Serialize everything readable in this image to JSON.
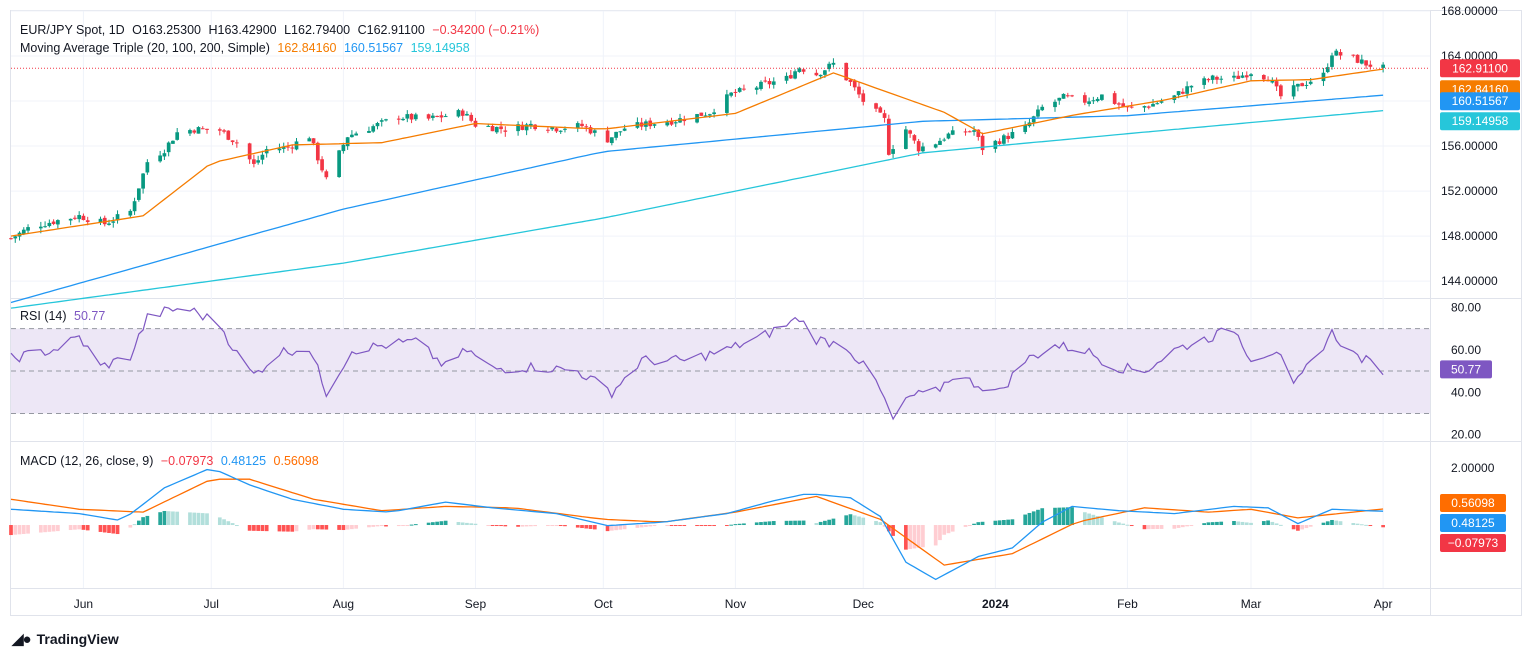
{
  "colors": {
    "up": "#089981",
    "down": "#f23645",
    "ma20": "#f57c00",
    "ma100": "#2196f3",
    "ma200": "#26c6da",
    "rsi": "#7e57c2",
    "rsi_band": "#ede7f6",
    "macd": "#2196f3",
    "signal": "#ff6d00",
    "hist_up_strong": "#26a69a",
    "hist_up_weak": "#b2dfdb",
    "hist_dn_strong": "#ff5252",
    "hist_dn_weak": "#ffcdd2",
    "grid": "#f0f3fa",
    "border": "#e0e3eb"
  },
  "legend": {
    "symbol": "EUR/JPY Spot, 1D",
    "o_label": "O",
    "o": "163.25300",
    "h_label": "H",
    "h": "163.42900",
    "l_label": "L",
    "l": "162.79400",
    "c_label": "C",
    "c": "162.91100",
    "change": "−0.34200 (−0.21%)",
    "ma_name": "Moving Average Triple (20, 100, 200, Simple)",
    "ma20": "162.84160",
    "ma100": "160.51567",
    "ma200": "159.14958",
    "rsi_name": "RSI (14)",
    "rsi": "50.77",
    "macd_name": "MACD (12, 26, close, 9)",
    "macd_hist": "−0.07973",
    "macd": "0.48125",
    "macd_signal": "0.56098"
  },
  "price_axis": [
    "168.00000",
    "164.00000",
    "160.00000",
    "156.00000",
    "152.00000",
    "148.00000",
    "144.00000"
  ],
  "price_badges": [
    "162.91100",
    "162.84160",
    "160.51567",
    "159.14958"
  ],
  "rsi_axis": [
    "80.00",
    "60.00",
    "40.00",
    "20.00"
  ],
  "rsi_badge": "50.77",
  "macd_axis": [
    "2.00000"
  ],
  "macd_badges": [
    "0.56098",
    "0.48125",
    "−0.07973"
  ],
  "time_axis": [
    "Jun",
    "Jul",
    "Aug",
    "Sep",
    "Oct",
    "Nov",
    "Dec",
    "2024",
    "Feb",
    "Mar",
    "Apr"
  ],
  "brand": "TradingView",
  "chart_data": [
    {
      "type": "candlestick",
      "title": "EUR/JPY Spot, 1D",
      "ylim": [
        142.5,
        168.0
      ],
      "x_range": [
        "2023-05-15",
        "2024-04-12"
      ],
      "price_anchors": [
        [
          "2023-05-15",
          147.8
        ],
        [
          "2023-05-20",
          148.9
        ],
        [
          "2023-05-31",
          149.8
        ],
        [
          "2023-06-06",
          149.1
        ],
        [
          "2023-06-12",
          150.2
        ],
        [
          "2023-06-16",
          154.6
        ],
        [
          "2023-06-20",
          155.7
        ],
        [
          "2023-06-23",
          157.2
        ],
        [
          "2023-06-27",
          157.5
        ],
        [
          "2023-07-03",
          157.4
        ],
        [
          "2023-07-07",
          156.3
        ],
        [
          "2023-07-11",
          154.3
        ],
        [
          "2023-07-14",
          155.7
        ],
        [
          "2023-07-19",
          155.9
        ],
        [
          "2023-07-24",
          156.9
        ],
        [
          "2023-07-28",
          153.0
        ],
        [
          "2023-08-02",
          156.9
        ],
        [
          "2023-08-07",
          157.6
        ],
        [
          "2023-08-14",
          158.6
        ],
        [
          "2023-08-21",
          158.4
        ],
        [
          "2023-08-25",
          158.7
        ],
        [
          "2023-08-29",
          159.0
        ],
        [
          "2023-09-01",
          157.9
        ],
        [
          "2023-09-08",
          157.5
        ],
        [
          "2023-09-14",
          157.9
        ],
        [
          "2023-09-20",
          157.6
        ],
        [
          "2023-09-26",
          157.8
        ],
        [
          "2023-10-02",
          156.6
        ],
        [
          "2023-10-06",
          157.6
        ],
        [
          "2023-10-12",
          158.0
        ],
        [
          "2023-10-18",
          158.3
        ],
        [
          "2023-10-26",
          159.0
        ],
        [
          "2023-10-31",
          160.6
        ],
        [
          "2023-11-08",
          161.5
        ],
        [
          "2023-11-13",
          162.0
        ],
        [
          "2023-11-16",
          163.0
        ],
        [
          "2023-11-20",
          162.4
        ],
        [
          "2023-11-24",
          163.3
        ],
        [
          "2023-11-28",
          161.6
        ],
        [
          "2023-12-01",
          160.0
        ],
        [
          "2023-12-06",
          158.3
        ],
        [
          "2023-12-07",
          155.5
        ],
        [
          "2023-12-11",
          157.5
        ],
        [
          "2023-12-14",
          155.8
        ],
        [
          "2023-12-18",
          156.3
        ],
        [
          "2023-12-21",
          157.0
        ],
        [
          "2023-12-27",
          157.4
        ],
        [
          "2023-12-29",
          155.8
        ],
        [
          "2024-01-03",
          156.7
        ],
        [
          "2024-01-08",
          157.6
        ],
        [
          "2024-01-12",
          159.4
        ],
        [
          "2024-01-17",
          160.3
        ],
        [
          "2024-01-22",
          160.0
        ],
        [
          "2024-01-26",
          160.5
        ],
        [
          "2024-02-01",
          159.3
        ],
        [
          "2024-02-06",
          159.6
        ],
        [
          "2024-02-12",
          160.4
        ],
        [
          "2024-02-16",
          161.4
        ],
        [
          "2024-02-21",
          162.0
        ],
        [
          "2024-02-26",
          162.0
        ],
        [
          "2024-03-01",
          162.6
        ],
        [
          "2024-03-05",
          162.1
        ],
        [
          "2024-03-08",
          160.4
        ],
        [
          "2024-03-13",
          161.5
        ],
        [
          "2024-03-18",
          162.3
        ],
        [
          "2024-03-20",
          164.3
        ],
        [
          "2024-03-25",
          163.8
        ],
        [
          "2024-03-28",
          163.3
        ],
        [
          "2024-04-01",
          162.91
        ]
      ],
      "ma20_anchors": [
        [
          "2023-05-15",
          148.0
        ],
        [
          "2023-06-15",
          149.8
        ],
        [
          "2023-07-01",
          154.5
        ],
        [
          "2023-07-20",
          156.1
        ],
        [
          "2023-08-10",
          156.3
        ],
        [
          "2023-09-01",
          158.0
        ],
        [
          "2023-10-01",
          157.5
        ],
        [
          "2023-11-01",
          158.9
        ],
        [
          "2023-11-24",
          162.5
        ],
        [
          "2023-12-20",
          159.0
        ],
        [
          "2023-12-29",
          157.1
        ],
        [
          "2024-01-20",
          158.8
        ],
        [
          "2024-02-10",
          160.1
        ],
        [
          "2024-03-01",
          161.8
        ],
        [
          "2024-03-15",
          161.9
        ],
        [
          "2024-04-01",
          162.84
        ]
      ],
      "ma100_anchors": [
        [
          "2023-05-15",
          142.1
        ],
        [
          "2023-08-01",
          150.4
        ],
        [
          "2023-10-01",
          155.5
        ],
        [
          "2023-12-15",
          158.2
        ],
        [
          "2024-02-01",
          158.7
        ],
        [
          "2024-04-01",
          160.52
        ]
      ],
      "ma200_anchors": [
        [
          "2023-05-15",
          141.6
        ],
        [
          "2023-08-01",
          145.6
        ],
        [
          "2023-10-01",
          149.6
        ],
        [
          "2023-12-15",
          155.4
        ],
        [
          "2024-02-01",
          157.1
        ],
        [
          "2024-04-01",
          159.15
        ]
      ],
      "last_close": 162.911,
      "ma_values": {
        "ma20": 162.8416,
        "ma100": 160.51567,
        "ma200": 159.14958
      }
    },
    {
      "type": "line",
      "title": "RSI (14)",
      "ylim": [
        17,
        84
      ],
      "bands": [
        30,
        50,
        70
      ],
      "anchors": [
        [
          "2023-05-15",
          56
        ],
        [
          "2023-05-25",
          60
        ],
        [
          "2023-05-31",
          66
        ],
        [
          "2023-06-05",
          52
        ],
        [
          "2023-06-12",
          57
        ],
        [
          "2023-06-16",
          75
        ],
        [
          "2023-06-20",
          78
        ],
        [
          "2023-06-25",
          80
        ],
        [
          "2023-07-03",
          72
        ],
        [
          "2023-07-07",
          58
        ],
        [
          "2023-07-11",
          48
        ],
        [
          "2023-07-17",
          59
        ],
        [
          "2023-07-24",
          61
        ],
        [
          "2023-07-28",
          40
        ],
        [
          "2023-08-03",
          60
        ],
        [
          "2023-08-10",
          62
        ],
        [
          "2023-08-18",
          64
        ],
        [
          "2023-08-25",
          52
        ],
        [
          "2023-08-30",
          60
        ],
        [
          "2023-09-05",
          51
        ],
        [
          "2023-09-15",
          52
        ],
        [
          "2023-09-25",
          50
        ],
        [
          "2023-10-03",
          40
        ],
        [
          "2023-10-10",
          55
        ],
        [
          "2023-10-20",
          55
        ],
        [
          "2023-10-30",
          60
        ],
        [
          "2023-11-08",
          67
        ],
        [
          "2023-11-16",
          75
        ],
        [
          "2023-11-20",
          65
        ],
        [
          "2023-11-27",
          62
        ],
        [
          "2023-12-04",
          45
        ],
        [
          "2023-12-08",
          27
        ],
        [
          "2023-12-12",
          38
        ],
        [
          "2023-12-18",
          40
        ],
        [
          "2023-12-22",
          48
        ],
        [
          "2024-01-02",
          40
        ],
        [
          "2024-01-08",
          55
        ],
        [
          "2024-01-15",
          62
        ],
        [
          "2024-01-22",
          60
        ],
        [
          "2024-01-29",
          52
        ],
        [
          "2024-02-05",
          50
        ],
        [
          "2024-02-12",
          60
        ],
        [
          "2024-02-19",
          65
        ],
        [
          "2024-02-26",
          70
        ],
        [
          "2024-03-01",
          56
        ],
        [
          "2024-03-07",
          60
        ],
        [
          "2024-03-11",
          42
        ],
        [
          "2024-03-15",
          54
        ],
        [
          "2024-03-20",
          68
        ],
        [
          "2024-03-25",
          58
        ],
        [
          "2024-04-01",
          50.77
        ]
      ],
      "last": 50.77
    },
    {
      "type": "macd",
      "title": "MACD (12, 26, close, 9)",
      "ylim": [
        -2.2,
        2.9
      ],
      "macd_anchors": [
        [
          "2023-05-15",
          0.55
        ],
        [
          "2023-05-31",
          0.4
        ],
        [
          "2023-06-10",
          0.15
        ],
        [
          "2023-06-20",
          1.3
        ],
        [
          "2023-07-01",
          2.0
        ],
        [
          "2023-07-10",
          1.4
        ],
        [
          "2023-07-20",
          0.9
        ],
        [
          "2023-08-01",
          0.55
        ],
        [
          "2023-08-12",
          0.45
        ],
        [
          "2023-08-25",
          0.8
        ],
        [
          "2023-09-05",
          0.6
        ],
        [
          "2023-09-20",
          0.4
        ],
        [
          "2023-10-02",
          -0.02
        ],
        [
          "2023-10-15",
          0.1
        ],
        [
          "2023-10-30",
          0.4
        ],
        [
          "2023-11-10",
          0.85
        ],
        [
          "2023-11-18",
          1.1
        ],
        [
          "2023-11-28",
          0.95
        ],
        [
          "2023-12-05",
          0.3
        ],
        [
          "2023-12-11",
          -1.3
        ],
        [
          "2023-12-18",
          -1.9
        ],
        [
          "2023-12-28",
          -1.1
        ],
        [
          "2024-01-05",
          -0.8
        ],
        [
          "2024-01-12",
          0.1
        ],
        [
          "2024-01-19",
          0.65
        ],
        [
          "2024-01-30",
          0.5
        ],
        [
          "2024-02-12",
          0.4
        ],
        [
          "2024-02-26",
          0.65
        ],
        [
          "2024-03-05",
          0.6
        ],
        [
          "2024-03-12",
          0.05
        ],
        [
          "2024-03-20",
          0.55
        ],
        [
          "2024-04-01",
          0.48125
        ]
      ],
      "signal_anchors": [
        [
          "2023-05-15",
          0.9
        ],
        [
          "2023-05-31",
          0.55
        ],
        [
          "2023-06-15",
          0.45
        ],
        [
          "2023-07-01",
          1.6
        ],
        [
          "2023-07-10",
          1.6
        ],
        [
          "2023-07-25",
          0.9
        ],
        [
          "2023-08-10",
          0.5
        ],
        [
          "2023-08-25",
          0.65
        ],
        [
          "2023-09-10",
          0.6
        ],
        [
          "2023-10-01",
          0.2
        ],
        [
          "2023-10-15",
          0.1
        ],
        [
          "2023-11-01",
          0.45
        ],
        [
          "2023-11-20",
          1.0
        ],
        [
          "2023-12-05",
          0.2
        ],
        [
          "2023-12-20",
          -1.4
        ],
        [
          "2024-01-05",
          -1.0
        ],
        [
          "2024-01-20",
          0.1
        ],
        [
          "2024-02-05",
          0.6
        ],
        [
          "2024-02-20",
          0.45
        ],
        [
          "2024-03-01",
          0.55
        ],
        [
          "2024-03-12",
          0.25
        ],
        [
          "2024-04-01",
          0.56098
        ]
      ],
      "last": {
        "histogram": -0.07973,
        "macd": 0.48125,
        "signal": 0.56098
      }
    }
  ]
}
